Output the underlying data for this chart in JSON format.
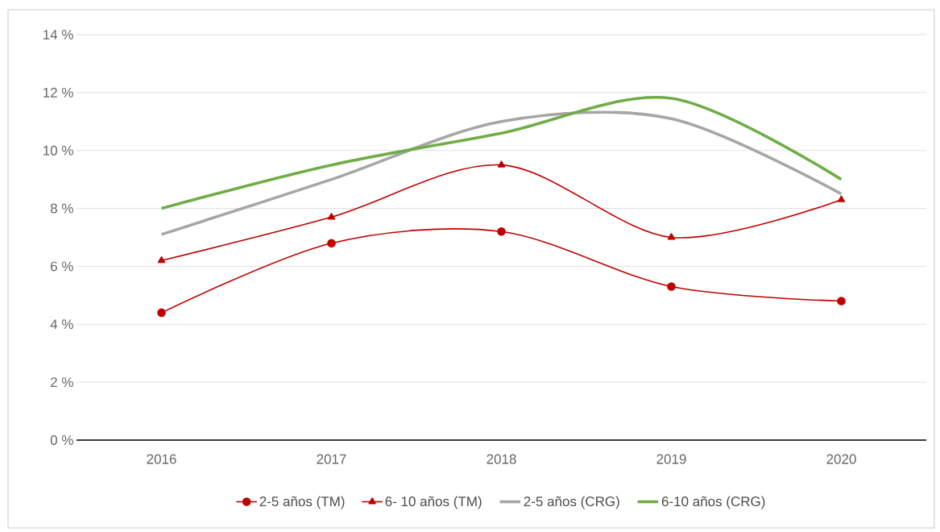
{
  "chart_data": {
    "type": "line",
    "categories": [
      "2016",
      "2017",
      "2018",
      "2019",
      "2020"
    ],
    "series": [
      {
        "name": "2-5 años (TM)",
        "color": "#c00000",
        "marker": "circle",
        "values": [
          4.4,
          6.8,
          7.2,
          5.3,
          4.8
        ]
      },
      {
        "name": "6- 10 años (TM)",
        "color": "#c00000",
        "marker": "triangle",
        "values": [
          6.2,
          7.7,
          9.5,
          7.0,
          8.3
        ]
      },
      {
        "name": "2-5 años (CRG)",
        "color": "#a6a6a6",
        "marker": "none",
        "values": [
          7.1,
          9.0,
          11.0,
          11.1,
          8.5
        ]
      },
      {
        "name": "6-10 años (CRG)",
        "color": "#70ad47",
        "marker": "none",
        "values": [
          8.0,
          9.5,
          10.6,
          11.8,
          9.0
        ]
      }
    ],
    "ylim": [
      0,
      14
    ],
    "yticks": [
      {
        "value": 0,
        "label": "0 %"
      },
      {
        "value": 2,
        "label": "2 %"
      },
      {
        "value": 4,
        "label": "4 %"
      },
      {
        "value": 6,
        "label": "6 %"
      },
      {
        "value": 8,
        "label": "8 %"
      },
      {
        "value": 10,
        "label": "10 %"
      },
      {
        "value": 12,
        "label": "12 %"
      },
      {
        "value": 14,
        "label": "14 %"
      }
    ],
    "grid": "y",
    "legend": "bottom",
    "line_style": "solid"
  }
}
